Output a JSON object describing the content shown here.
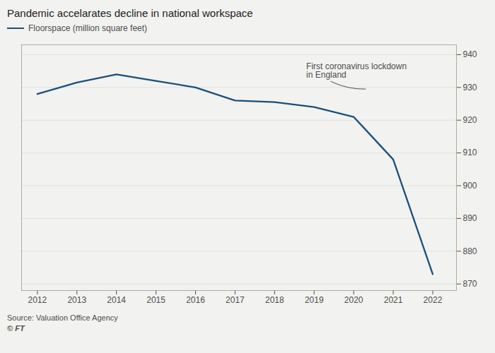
{
  "chart_data": {
    "type": "line",
    "title": "Pandemic accelarates decline in national workspace",
    "x": [
      2012,
      2013,
      2014,
      2015,
      2016,
      2017,
      2018,
      2019,
      2020,
      2021,
      2022
    ],
    "series": [
      {
        "name": "Floorspace (million square feet)",
        "color": "#1a4f7a",
        "values": [
          928,
          931.5,
          934,
          932,
          930,
          926,
          925.5,
          924,
          921,
          908,
          873
        ]
      }
    ],
    "xlim": [
      2011.6,
      2022.6
    ],
    "xticks": [
      2012,
      2013,
      2014,
      2015,
      2016,
      2017,
      2018,
      2019,
      2020,
      2021,
      2022
    ],
    "ylim": [
      868,
      943
    ],
    "yticks": [
      870,
      880,
      890,
      900,
      910,
      920,
      930,
      940
    ],
    "grid": true,
    "legend": "upper left",
    "annotations": [
      {
        "text": "First coronavirus lockdown\nin England",
        "x": 2018.8,
        "y": 937.5,
        "arrow_x": 2020.3,
        "arrow_y": 929.5
      }
    ],
    "source": "Source: Valuation Office Agency",
    "credit": "© FT"
  }
}
